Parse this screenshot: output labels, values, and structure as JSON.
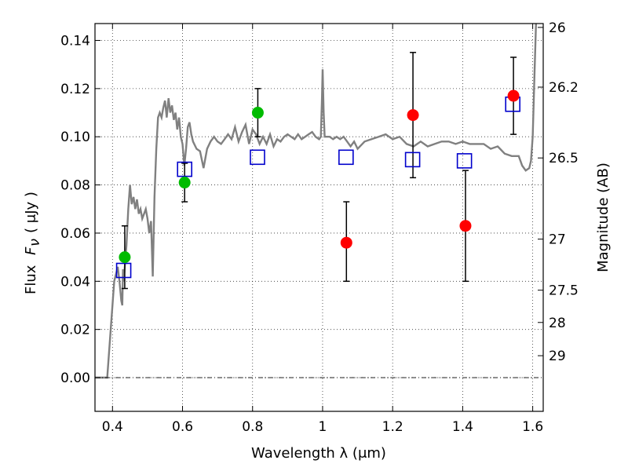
{
  "chart_data": {
    "type": "scatter",
    "xlabel": "Wavelength  λ (μm)",
    "ylabel_text": "Flux",
    "ylabel_symbol": "F",
    "ylabel_sub": "ν",
    "ylabel_units": "( μJy )",
    "y2label": "Magnitude (AB)",
    "xlim": [
      0.35,
      1.63
    ],
    "ylim": [
      -0.014,
      0.147
    ],
    "grid": true,
    "x_ticks": [
      {
        "value": 0.4,
        "label": "0.4"
      },
      {
        "value": 0.6,
        "label": "0.6"
      },
      {
        "value": 0.8,
        "label": "0.8"
      },
      {
        "value": 1.0,
        "label": "1"
      },
      {
        "value": 1.2,
        "label": "1.2"
      },
      {
        "value": 1.4,
        "label": "1.4"
      },
      {
        "value": 1.6,
        "label": "1.6"
      }
    ],
    "y_ticks": [
      {
        "value": 0.0,
        "label": "0.00"
      },
      {
        "value": 0.02,
        "label": "0.02"
      },
      {
        "value": 0.04,
        "label": "0.04"
      },
      {
        "value": 0.06,
        "label": "0.06"
      },
      {
        "value": 0.08,
        "label": "0.08"
      },
      {
        "value": 0.1,
        "label": "0.10"
      },
      {
        "value": 0.12,
        "label": "0.12"
      },
      {
        "value": 0.14,
        "label": "0.14"
      }
    ],
    "right_ticks": [
      {
        "flux": 0.1454,
        "label": "26"
      },
      {
        "flux": 0.1206,
        "label": "26.2"
      },
      {
        "flux": 0.0912,
        "label": "26.5"
      },
      {
        "flux": 0.0575,
        "label": "27"
      },
      {
        "flux": 0.0363,
        "label": "27.5"
      },
      {
        "flux": 0.0229,
        "label": "28"
      },
      {
        "flux": 0.0091,
        "label": "29"
      }
    ],
    "colors": {
      "model": "#808080",
      "green": "#00bb00",
      "red": "#ff0000",
      "box": "#0000cc",
      "errorbar": "#000000"
    },
    "model_spectrum": {
      "name": "template",
      "x": [
        0.35,
        0.375,
        0.385,
        0.39,
        0.405,
        0.415,
        0.42,
        0.425,
        0.428,
        0.43,
        0.432,
        0.44,
        0.445,
        0.45,
        0.455,
        0.46,
        0.465,
        0.47,
        0.475,
        0.48,
        0.485,
        0.49,
        0.495,
        0.5,
        0.505,
        0.51,
        0.515,
        0.52,
        0.525,
        0.53,
        0.535,
        0.54,
        0.545,
        0.55,
        0.555,
        0.56,
        0.565,
        0.57,
        0.575,
        0.58,
        0.585,
        0.59,
        0.595,
        0.6,
        0.605,
        0.61,
        0.615,
        0.62,
        0.625,
        0.63,
        0.64,
        0.65,
        0.66,
        0.67,
        0.68,
        0.69,
        0.7,
        0.71,
        0.72,
        0.73,
        0.74,
        0.75,
        0.76,
        0.77,
        0.78,
        0.79,
        0.8,
        0.81,
        0.82,
        0.83,
        0.84,
        0.85,
        0.86,
        0.87,
        0.88,
        0.89,
        0.9,
        0.91,
        0.92,
        0.93,
        0.94,
        0.95,
        0.96,
        0.97,
        0.98,
        0.99,
        0.995,
        0.998,
        1.0,
        1.003,
        1.006,
        1.01,
        1.02,
        1.03,
        1.04,
        1.05,
        1.06,
        1.07,
        1.08,
        1.09,
        1.1,
        1.12,
        1.14,
        1.16,
        1.18,
        1.2,
        1.22,
        1.24,
        1.26,
        1.28,
        1.3,
        1.32,
        1.34,
        1.36,
        1.38,
        1.4,
        1.42,
        1.44,
        1.46,
        1.48,
        1.5,
        1.52,
        1.54,
        1.56,
        1.57,
        1.58,
        1.59,
        1.595,
        1.6,
        1.605,
        1.61,
        1.615,
        1.62,
        1.63
      ],
      "y": [
        0.0,
        0.0,
        0.0,
        0.01,
        0.04,
        0.046,
        0.04,
        0.032,
        0.03,
        0.045,
        0.04,
        0.055,
        0.07,
        0.08,
        0.072,
        0.075,
        0.07,
        0.074,
        0.068,
        0.07,
        0.066,
        0.068,
        0.07,
        0.066,
        0.06,
        0.065,
        0.042,
        0.075,
        0.095,
        0.108,
        0.11,
        0.108,
        0.112,
        0.115,
        0.108,
        0.116,
        0.11,
        0.113,
        0.107,
        0.11,
        0.103,
        0.108,
        0.1,
        0.097,
        0.088,
        0.095,
        0.104,
        0.106,
        0.101,
        0.098,
        0.095,
        0.094,
        0.087,
        0.095,
        0.098,
        0.1,
        0.098,
        0.097,
        0.099,
        0.101,
        0.099,
        0.104,
        0.098,
        0.102,
        0.105,
        0.097,
        0.103,
        0.101,
        0.097,
        0.1,
        0.097,
        0.101,
        0.096,
        0.099,
        0.098,
        0.1,
        0.101,
        0.1,
        0.099,
        0.101,
        0.099,
        0.1,
        0.101,
        0.102,
        0.1,
        0.099,
        0.1,
        0.115,
        0.128,
        0.11,
        0.1,
        0.1,
        0.1,
        0.099,
        0.1,
        0.099,
        0.1,
        0.098,
        0.096,
        0.098,
        0.095,
        0.098,
        0.099,
        0.1,
        0.101,
        0.099,
        0.1,
        0.097,
        0.096,
        0.098,
        0.096,
        0.097,
        0.098,
        0.098,
        0.097,
        0.098,
        0.097,
        0.097,
        0.097,
        0.095,
        0.096,
        0.093,
        0.092,
        0.092,
        0.088,
        0.086,
        0.087,
        0.09,
        0.1,
        0.125,
        0.15,
        0.15,
        0.15,
        0.15
      ]
    },
    "green_points": [
      {
        "x": 0.435,
        "y": 0.05,
        "err_low": 0.037,
        "err_high": 0.063
      },
      {
        "x": 0.606,
        "y": 0.081,
        "err_low": 0.073,
        "err_high": 0.089
      },
      {
        "x": 0.815,
        "y": 0.11,
        "err_low": 0.1,
        "err_high": 0.12
      }
    ],
    "red_points": [
      {
        "x": 1.068,
        "y": 0.056,
        "err_low": 0.04,
        "err_high": 0.073
      },
      {
        "x": 1.258,
        "y": 0.109,
        "err_low": 0.083,
        "err_high": 0.135
      },
      {
        "x": 1.408,
        "y": 0.063,
        "err_low": 0.04,
        "err_high": 0.086
      },
      {
        "x": 1.545,
        "y": 0.117,
        "err_low": 0.101,
        "err_high": 0.133
      }
    ],
    "model_boxes": [
      {
        "x": 0.432,
        "y": 0.0445
      },
      {
        "x": 0.606,
        "y": 0.0865
      },
      {
        "x": 0.814,
        "y": 0.0915
      },
      {
        "x": 1.067,
        "y": 0.0915
      },
      {
        "x": 1.257,
        "y": 0.0905
      },
      {
        "x": 1.405,
        "y": 0.09
      },
      {
        "x": 1.543,
        "y": 0.1135
      }
    ]
  }
}
